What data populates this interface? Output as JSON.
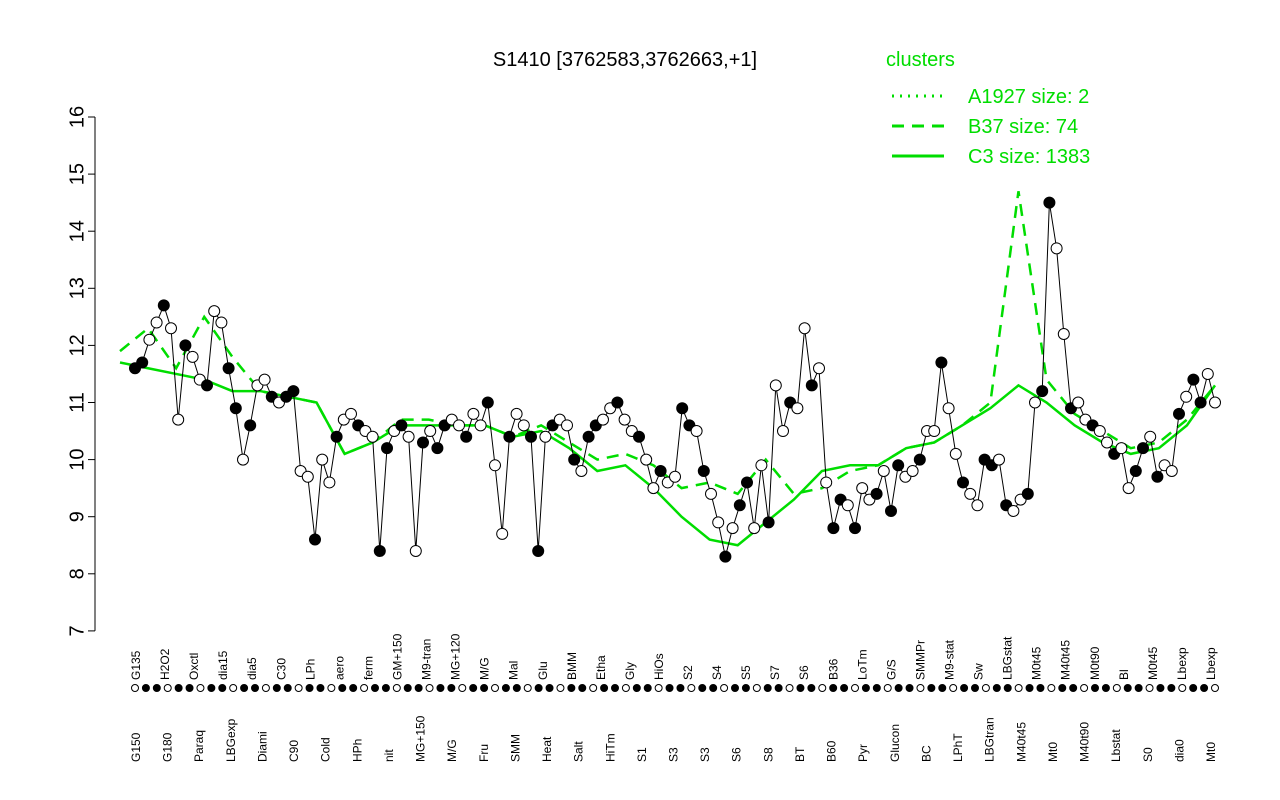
{
  "colors": {
    "cluster": "#00dd00",
    "axis": "#000000",
    "point_fill_open": "#ffffff",
    "point_fill_solid": "#000000"
  },
  "legend": {
    "title": "clusters",
    "items": [
      {
        "label": "A1927 size: 2",
        "style": "dotted"
      },
      {
        "label": "B37 size: 74",
        "style": "dashed"
      },
      {
        "label": "C3 size: 1383",
        "style": "solid"
      }
    ]
  },
  "chart_data": {
    "type": "line",
    "title": "S1410 [3762583,3762663,+1]",
    "xlabel": "",
    "ylabel": "",
    "ylim": [
      7,
      16
    ],
    "yticks": [
      7,
      8,
      9,
      10,
      11,
      12,
      13,
      14,
      15,
      16
    ],
    "grid": false,
    "legend_position": "top-right",
    "x_tick_labels_top": [
      "G135",
      "H2O2",
      "Oxctl",
      "dia15",
      "dia5",
      "C30",
      "LPh",
      "aero",
      "ferm",
      "GM+150",
      "M9-tran",
      "MG+120",
      "M/G",
      "Mal",
      "Glu",
      "BMM",
      "Etha",
      "Gly",
      "HiOs",
      "S2",
      "S4",
      "S5",
      "S7",
      "S6",
      "B36",
      "LoTm",
      "G/S",
      "SMMPr",
      "M9-stat",
      "Sw",
      "LBGstat",
      "M0t45",
      "M40t45",
      "M0t90",
      "Bl",
      "M0t45",
      "Lbexp",
      "Lbexp"
    ],
    "x_tick_labels_bottom": [
      "G150",
      "G180",
      "Paraq",
      "LBGexp",
      "Diami",
      "C90",
      "Cold",
      "HPh",
      "nit",
      "MG+150",
      "M/G",
      "Fru",
      "SMM",
      "Heat",
      "Salt",
      "HiTm",
      "S1",
      "S3",
      "S3",
      "S6",
      "S8",
      "BT",
      "B60",
      "Pyr",
      "Glucon",
      "BC",
      "LPhT",
      "LBGtran",
      "M40t45",
      "Mt0",
      "M40t90",
      "Lbstat",
      "S0",
      "dia0",
      "Mt0"
    ],
    "series": [
      {
        "name": "A1927 size: 2",
        "style": "dotted",
        "values": []
      },
      {
        "name": "B37 size: 74",
        "style": "dashed",
        "values": [
          11.9,
          12.3,
          11.6,
          12.5,
          11.8,
          11.2,
          11.1,
          11.0,
          10.1,
          10.3,
          10.7,
          10.7,
          10.6,
          10.6,
          10.4,
          10.6,
          10.3,
          10.0,
          10.1,
          9.9,
          9.5,
          9.6,
          9.4,
          10.0,
          9.4,
          9.5,
          9.8,
          9.9,
          10.2,
          10.3,
          10.6,
          11.0,
          14.7,
          11.4,
          10.8,
          10.5,
          10.2,
          10.3,
          10.7,
          11.3
        ]
      },
      {
        "name": "C3 size: 1383",
        "style": "solid",
        "values": [
          11.7,
          11.6,
          11.5,
          11.4,
          11.2,
          11.2,
          11.1,
          11.0,
          10.1,
          10.3,
          10.6,
          10.6,
          10.6,
          10.6,
          10.4,
          10.5,
          10.2,
          9.8,
          9.9,
          9.5,
          9.0,
          8.6,
          8.5,
          8.9,
          9.3,
          9.8,
          9.9,
          9.9,
          10.2,
          10.3,
          10.6,
          10.9,
          11.3,
          11.0,
          10.6,
          10.3,
          10.1,
          10.2,
          10.6,
          11.3
        ]
      },
      {
        "name": "",
        "style": "points",
        "values": [
          11.6,
          11.7,
          12.1,
          12.4,
          12.7,
          12.3,
          10.7,
          12.0,
          11.8,
          11.4,
          11.3,
          12.6,
          12.4,
          11.6,
          10.9,
          10.0,
          10.6,
          11.3,
          11.4,
          11.1,
          11.0,
          11.1,
          11.2,
          9.8,
          9.7,
          8.6,
          10.0,
          9.6,
          10.4,
          10.7,
          10.8,
          10.6,
          10.5,
          10.4,
          8.4,
          10.2,
          10.5,
          10.6,
          10.4,
          8.4,
          10.3,
          10.5,
          10.2,
          10.6,
          10.7,
          10.6,
          10.4,
          10.8,
          10.6,
          11.0,
          9.9,
          8.7,
          10.4,
          10.8,
          10.6,
          10.4,
          8.4,
          10.4,
          10.6,
          10.7,
          10.6,
          10.0,
          9.8,
          10.4,
          10.6,
          10.7,
          10.9,
          11.0,
          10.7,
          10.5,
          10.4,
          10.0,
          9.5,
          9.8,
          9.6,
          9.7,
          10.9,
          10.6,
          10.5,
          9.8,
          9.4,
          8.9,
          8.3,
          8.8,
          9.2,
          9.6,
          8.8,
          9.9,
          8.9,
          11.3,
          10.5,
          11.0,
          10.9,
          12.3,
          11.3,
          11.6,
          9.6,
          8.8,
          9.3,
          9.2,
          8.8,
          9.5,
          9.3,
          9.4,
          9.8,
          9.1,
          9.9,
          9.7,
          9.8,
          10.0,
          10.5,
          10.5,
          11.7,
          10.9,
          10.1,
          9.6,
          9.4,
          9.2,
          10.0,
          9.9,
          10.0,
          9.2,
          9.1,
          9.3,
          9.4,
          11.0,
          11.2,
          14.5,
          13.7,
          12.2,
          10.9,
          11.0,
          10.7,
          10.6,
          10.5,
          10.3,
          10.1,
          10.2,
          9.5,
          9.8,
          10.2,
          10.4,
          9.7,
          9.9,
          9.8,
          10.8,
          11.1,
          11.4,
          11.0,
          11.5,
          11.0
        ]
      }
    ]
  }
}
